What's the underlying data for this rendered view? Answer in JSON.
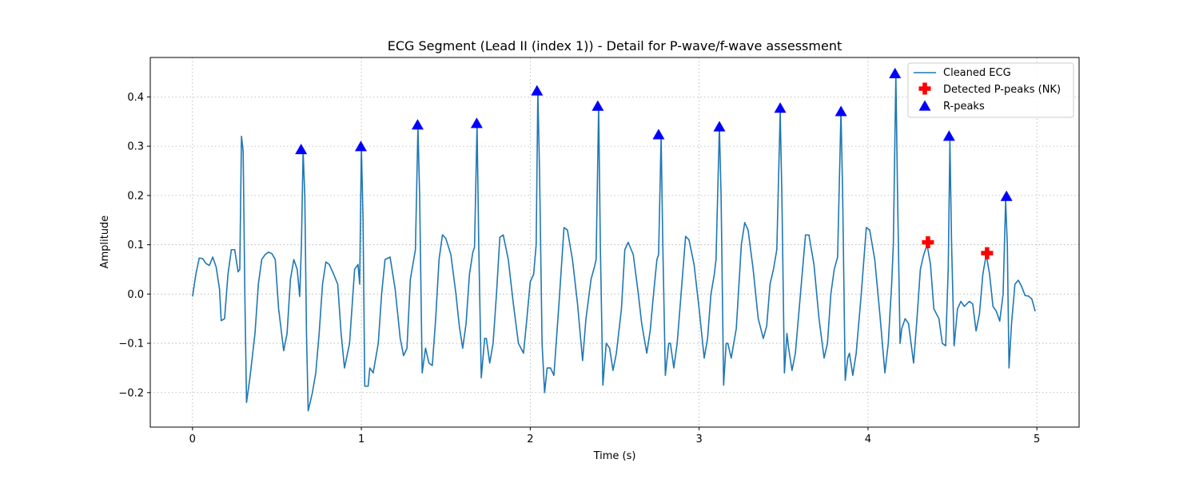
{
  "chart_data": {
    "type": "line",
    "title": "ECG Segment (Lead II (index 1)) - Detail for P-wave/f-wave assessment",
    "xlabel": "Time (s)",
    "ylabel": "Amplitude",
    "xlim": [
      -0.25,
      5.25
    ],
    "ylim": [
      -0.27,
      0.48
    ],
    "xticks": [
      0,
      1,
      2,
      3,
      4,
      5
    ],
    "yticks": [
      -0.2,
      -0.1,
      0.0,
      0.1,
      0.2,
      0.3,
      0.4
    ],
    "ytick_labels": [
      "−0.2",
      "−0.1",
      "0.0",
      "0.1",
      "0.2",
      "0.3",
      "0.4"
    ],
    "grid": true,
    "legend_position": "top-right",
    "series": [
      {
        "name": "Cleaned ECG",
        "kind": "line",
        "color": "#1f77b4",
        "points": [
          [
            0.0,
            -0.005
          ],
          [
            0.02,
            0.04
          ],
          [
            0.04,
            0.073
          ],
          [
            0.06,
            0.072
          ],
          [
            0.08,
            0.062
          ],
          [
            0.1,
            0.058
          ],
          [
            0.12,
            0.075
          ],
          [
            0.14,
            0.055
          ],
          [
            0.16,
            0.01
          ],
          [
            0.17,
            -0.054
          ],
          [
            0.19,
            -0.05
          ],
          [
            0.21,
            0.04
          ],
          [
            0.23,
            0.09
          ],
          [
            0.25,
            0.09
          ],
          [
            0.27,
            0.045
          ],
          [
            0.28,
            0.05
          ],
          [
            0.29,
            0.32
          ],
          [
            0.3,
            0.29
          ],
          [
            0.31,
            0.0
          ],
          [
            0.32,
            -0.22
          ],
          [
            0.34,
            -0.17
          ],
          [
            0.37,
            -0.08
          ],
          [
            0.39,
            0.02
          ],
          [
            0.41,
            0.07
          ],
          [
            0.43,
            0.08
          ],
          [
            0.45,
            0.085
          ],
          [
            0.47,
            0.082
          ],
          [
            0.49,
            0.07
          ],
          [
            0.51,
            -0.03
          ],
          [
            0.54,
            -0.115
          ],
          [
            0.56,
            -0.08
          ],
          [
            0.58,
            0.03
          ],
          [
            0.6,
            0.07
          ],
          [
            0.62,
            0.05
          ],
          [
            0.635,
            -0.005
          ],
          [
            0.645,
            0.1
          ],
          [
            0.655,
            0.29
          ],
          [
            0.665,
            0.2
          ],
          [
            0.675,
            -0.08
          ],
          [
            0.685,
            -0.237
          ],
          [
            0.71,
            -0.2
          ],
          [
            0.73,
            -0.16
          ],
          [
            0.75,
            -0.08
          ],
          [
            0.77,
            0.02
          ],
          [
            0.79,
            0.065
          ],
          [
            0.81,
            0.06
          ],
          [
            0.83,
            0.045
          ],
          [
            0.86,
            0.02
          ],
          [
            0.88,
            -0.08
          ],
          [
            0.9,
            -0.15
          ],
          [
            0.93,
            -0.1
          ],
          [
            0.96,
            0.05
          ],
          [
            0.98,
            0.06
          ],
          [
            0.99,
            0.02
          ],
          [
            1.0,
            0.3
          ],
          [
            1.01,
            0.15
          ],
          [
            1.02,
            -0.187
          ],
          [
            1.04,
            -0.187
          ],
          [
            1.05,
            -0.15
          ],
          [
            1.07,
            -0.16
          ],
          [
            1.1,
            -0.1
          ],
          [
            1.12,
            0.0
          ],
          [
            1.14,
            0.07
          ],
          [
            1.17,
            0.075
          ],
          [
            1.2,
            0.01
          ],
          [
            1.23,
            -0.09
          ],
          [
            1.25,
            -0.125
          ],
          [
            1.27,
            -0.11
          ],
          [
            1.29,
            0.03
          ],
          [
            1.31,
            0.07
          ],
          [
            1.32,
            0.09
          ],
          [
            1.335,
            0.34
          ],
          [
            1.345,
            0.2
          ],
          [
            1.36,
            -0.16
          ],
          [
            1.38,
            -0.11
          ],
          [
            1.4,
            -0.14
          ],
          [
            1.42,
            -0.145
          ],
          [
            1.44,
            -0.05
          ],
          [
            1.46,
            0.07
          ],
          [
            1.48,
            0.12
          ],
          [
            1.5,
            0.113
          ],
          [
            1.53,
            0.08
          ],
          [
            1.56,
            0.0
          ],
          [
            1.58,
            -0.065
          ],
          [
            1.6,
            -0.11
          ],
          [
            1.62,
            -0.06
          ],
          [
            1.64,
            0.04
          ],
          [
            1.66,
            0.085
          ],
          [
            1.67,
            0.095
          ],
          [
            1.685,
            0.345
          ],
          [
            1.695,
            0.1
          ],
          [
            1.71,
            -0.17
          ],
          [
            1.73,
            -0.09
          ],
          [
            1.74,
            -0.09
          ],
          [
            1.76,
            -0.14
          ],
          [
            1.78,
            -0.1
          ],
          [
            1.8,
            0.0
          ],
          [
            1.82,
            0.115
          ],
          [
            1.84,
            0.12
          ],
          [
            1.87,
            0.07
          ],
          [
            1.9,
            -0.02
          ],
          [
            1.93,
            -0.1
          ],
          [
            1.96,
            -0.12
          ],
          [
            1.98,
            -0.05
          ],
          [
            2.0,
            0.025
          ],
          [
            2.02,
            0.04
          ],
          [
            2.035,
            0.1
          ],
          [
            2.045,
            0.41
          ],
          [
            2.055,
            0.25
          ],
          [
            2.07,
            -0.1
          ],
          [
            2.085,
            -0.2
          ],
          [
            2.1,
            -0.15
          ],
          [
            2.12,
            -0.15
          ],
          [
            2.14,
            -0.165
          ],
          [
            2.17,
            -0.02
          ],
          [
            2.2,
            0.135
          ],
          [
            2.22,
            0.13
          ],
          [
            2.25,
            0.07
          ],
          [
            2.28,
            -0.02
          ],
          [
            2.31,
            -0.135
          ],
          [
            2.33,
            -0.05
          ],
          [
            2.36,
            0.03
          ],
          [
            2.38,
            0.055
          ],
          [
            2.39,
            0.07
          ],
          [
            2.405,
            0.38
          ],
          [
            2.415,
            0.1
          ],
          [
            2.43,
            -0.185
          ],
          [
            2.45,
            -0.1
          ],
          [
            2.47,
            -0.11
          ],
          [
            2.49,
            -0.155
          ],
          [
            2.51,
            -0.12
          ],
          [
            2.54,
            -0.03
          ],
          [
            2.56,
            0.09
          ],
          [
            2.58,
            0.105
          ],
          [
            2.61,
            0.08
          ],
          [
            2.64,
            0.0
          ],
          [
            2.66,
            -0.06
          ],
          [
            2.69,
            -0.12
          ],
          [
            2.71,
            -0.075
          ],
          [
            2.73,
            0.0
          ],
          [
            2.75,
            0.07
          ],
          [
            2.76,
            0.08
          ],
          [
            2.775,
            0.32
          ],
          [
            2.785,
            0.1
          ],
          [
            2.8,
            -0.165
          ],
          [
            2.82,
            -0.1
          ],
          [
            2.83,
            -0.1
          ],
          [
            2.85,
            -0.15
          ],
          [
            2.87,
            -0.1
          ],
          [
            2.9,
            0.03
          ],
          [
            2.92,
            0.117
          ],
          [
            2.94,
            0.11
          ],
          [
            2.97,
            0.06
          ],
          [
            3.0,
            -0.03
          ],
          [
            3.03,
            -0.13
          ],
          [
            3.05,
            -0.09
          ],
          [
            3.07,
            0.0
          ],
          [
            3.09,
            0.04
          ],
          [
            3.1,
            0.07
          ],
          [
            3.12,
            0.34
          ],
          [
            3.13,
            0.2
          ],
          [
            3.145,
            -0.185
          ],
          [
            3.16,
            -0.1
          ],
          [
            3.17,
            -0.1
          ],
          [
            3.19,
            -0.13
          ],
          [
            3.22,
            -0.07
          ],
          [
            3.25,
            0.1
          ],
          [
            3.27,
            0.145
          ],
          [
            3.29,
            0.13
          ],
          [
            3.32,
            0.05
          ],
          [
            3.35,
            -0.05
          ],
          [
            3.38,
            -0.09
          ],
          [
            3.4,
            -0.065
          ],
          [
            3.42,
            0.02
          ],
          [
            3.44,
            0.05
          ],
          [
            3.46,
            0.09
          ],
          [
            3.48,
            0.37
          ],
          [
            3.49,
            0.2
          ],
          [
            3.505,
            -0.16
          ],
          [
            3.52,
            -0.08
          ],
          [
            3.53,
            -0.11
          ],
          [
            3.55,
            -0.155
          ],
          [
            3.57,
            -0.12
          ],
          [
            3.6,
            0.0
          ],
          [
            3.63,
            0.12
          ],
          [
            3.65,
            0.12
          ],
          [
            3.68,
            0.06
          ],
          [
            3.71,
            -0.05
          ],
          [
            3.74,
            -0.13
          ],
          [
            3.76,
            -0.1
          ],
          [
            3.78,
            0.0
          ],
          [
            3.8,
            0.05
          ],
          [
            3.82,
            0.075
          ],
          [
            3.84,
            0.37
          ],
          [
            3.85,
            0.2
          ],
          [
            3.865,
            -0.175
          ],
          [
            3.88,
            -0.13
          ],
          [
            3.89,
            -0.12
          ],
          [
            3.91,
            -0.165
          ],
          [
            3.93,
            -0.12
          ],
          [
            3.96,
            0.0
          ],
          [
            3.99,
            0.135
          ],
          [
            4.01,
            0.13
          ],
          [
            4.04,
            0.07
          ],
          [
            4.07,
            -0.04
          ],
          [
            4.1,
            -0.16
          ],
          [
            4.12,
            -0.1
          ],
          [
            4.14,
            0.02
          ],
          [
            4.15,
            0.1
          ],
          [
            4.165,
            0.445
          ],
          [
            4.175,
            0.2
          ],
          [
            4.19,
            -0.1
          ],
          [
            4.2,
            -0.07
          ],
          [
            4.22,
            -0.05
          ],
          [
            4.24,
            -0.06
          ],
          [
            4.27,
            -0.14
          ],
          [
            4.29,
            -0.05
          ],
          [
            4.31,
            0.05
          ],
          [
            4.33,
            0.08
          ],
          [
            4.35,
            0.1
          ],
          [
            4.37,
            0.06
          ],
          [
            4.39,
            -0.03
          ],
          [
            4.42,
            -0.05
          ],
          [
            4.44,
            -0.1
          ],
          [
            4.46,
            -0.105
          ],
          [
            4.475,
            0.05
          ],
          [
            4.485,
            0.31
          ],
          [
            4.495,
            0.1
          ],
          [
            4.51,
            -0.105
          ],
          [
            4.53,
            -0.03
          ],
          [
            4.55,
            -0.015
          ],
          [
            4.57,
            -0.025
          ],
          [
            4.6,
            -0.015
          ],
          [
            4.62,
            -0.02
          ],
          [
            4.64,
            -0.075
          ],
          [
            4.66,
            -0.04
          ],
          [
            4.68,
            0.04
          ],
          [
            4.7,
            0.08
          ],
          [
            4.72,
            0.04
          ],
          [
            4.74,
            -0.025
          ],
          [
            4.76,
            -0.035
          ],
          [
            4.78,
            -0.055
          ],
          [
            4.8,
            0.0
          ],
          [
            4.815,
            0.19
          ],
          [
            4.825,
            0.1
          ],
          [
            4.835,
            -0.15
          ],
          [
            4.85,
            -0.06
          ],
          [
            4.87,
            0.02
          ],
          [
            4.89,
            0.028
          ],
          [
            4.91,
            0.015
          ],
          [
            4.93,
            -0.003
          ],
          [
            4.95,
            -0.004
          ],
          [
            4.97,
            -0.01
          ],
          [
            4.99,
            -0.035
          ]
        ]
      },
      {
        "name": "Detected P-peaks (NK)",
        "kind": "scatter",
        "marker": "plus",
        "color": "#ff0000",
        "points": [
          [
            4.355,
            0.105
          ],
          [
            4.705,
            0.083
          ]
        ]
      },
      {
        "name": "R-peaks",
        "kind": "scatter",
        "marker": "triangle",
        "color": "#0000ff",
        "points": [
          [
            0.643,
            0.293
          ],
          [
            0.997,
            0.299
          ],
          [
            1.333,
            0.343
          ],
          [
            1.683,
            0.346
          ],
          [
            2.04,
            0.412
          ],
          [
            2.4,
            0.381
          ],
          [
            2.76,
            0.323
          ],
          [
            3.12,
            0.339
          ],
          [
            3.48,
            0.377
          ],
          [
            3.84,
            0.37
          ],
          [
            4.16,
            0.447
          ],
          [
            4.48,
            0.32
          ],
          [
            4.82,
            0.198
          ]
        ]
      }
    ]
  }
}
